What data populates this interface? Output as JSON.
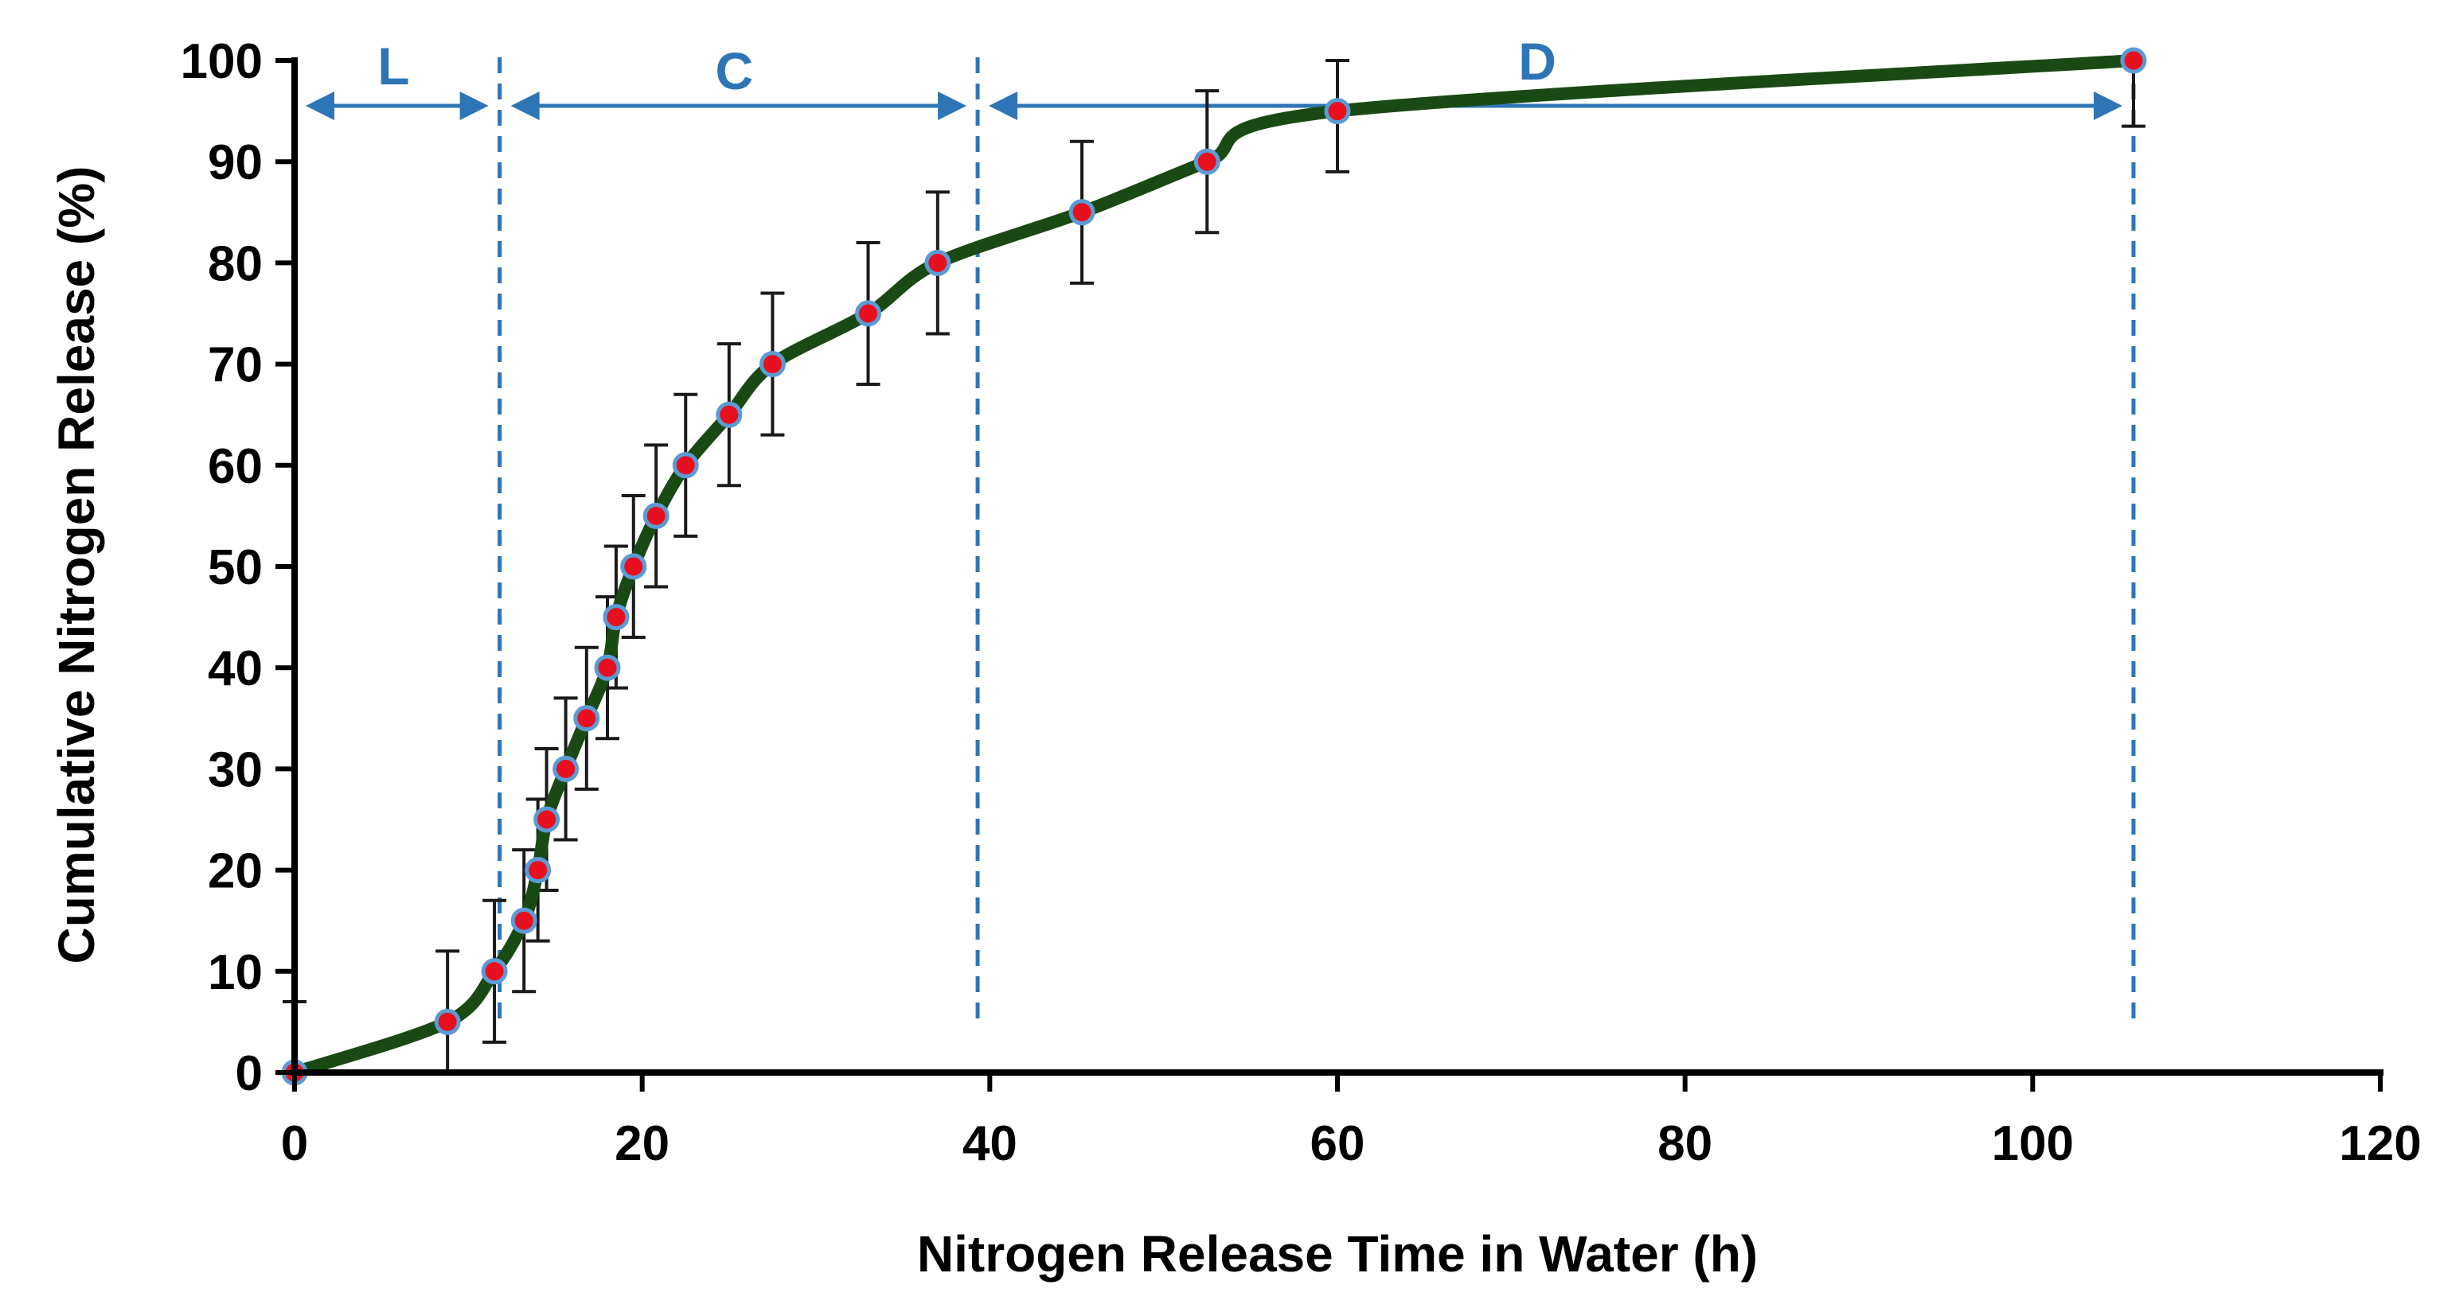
{
  "chart_data": {
    "type": "line",
    "title": "",
    "xlabel": "Nitrogen Release Time in Water (h)",
    "ylabel": "Cumulative Nitrogen Release (%)",
    "xlim": [
      0,
      120
    ],
    "ylim": [
      0,
      100
    ],
    "xticks": [
      0,
      20,
      40,
      60,
      80,
      100,
      120
    ],
    "yticks": [
      0,
      10,
      20,
      30,
      40,
      50,
      60,
      70,
      80,
      90,
      100
    ],
    "grid": false,
    "series": [
      {
        "name": "Cumulative Nitrogen Release",
        "color": "#1a4a14",
        "marker_fill": "#e8101e",
        "marker_edge": "#5b9bd5",
        "x": [
          0,
          8.8,
          11.5,
          13.2,
          14,
          14.5,
          15.6,
          16.8,
          18,
          18.5,
          19.5,
          20.8,
          22.5,
          25,
          27.5,
          33,
          37,
          45.3,
          52.5,
          60,
          105.8
        ],
        "y": [
          0,
          5,
          10,
          15,
          20,
          25,
          30,
          35,
          40,
          45,
          50,
          55,
          60,
          65,
          70,
          75,
          80,
          85,
          90,
          95,
          100
        ],
        "error": [
          7,
          7,
          7,
          7,
          7,
          7,
          7,
          7,
          7,
          7,
          7,
          7,
          7,
          7,
          7,
          7,
          7,
          7,
          7,
          6,
          6.5
        ]
      }
    ],
    "phases": [
      {
        "label": "L",
        "start": 0,
        "end": 11.8
      },
      {
        "label": "C",
        "start": 11.8,
        "end": 39.3
      },
      {
        "label": "D",
        "start": 39.3,
        "end": 105.8
      }
    ],
    "phase_boundaries": [
      11.8,
      39.3,
      105.8
    ],
    "phase_color": "#2e75b6"
  }
}
